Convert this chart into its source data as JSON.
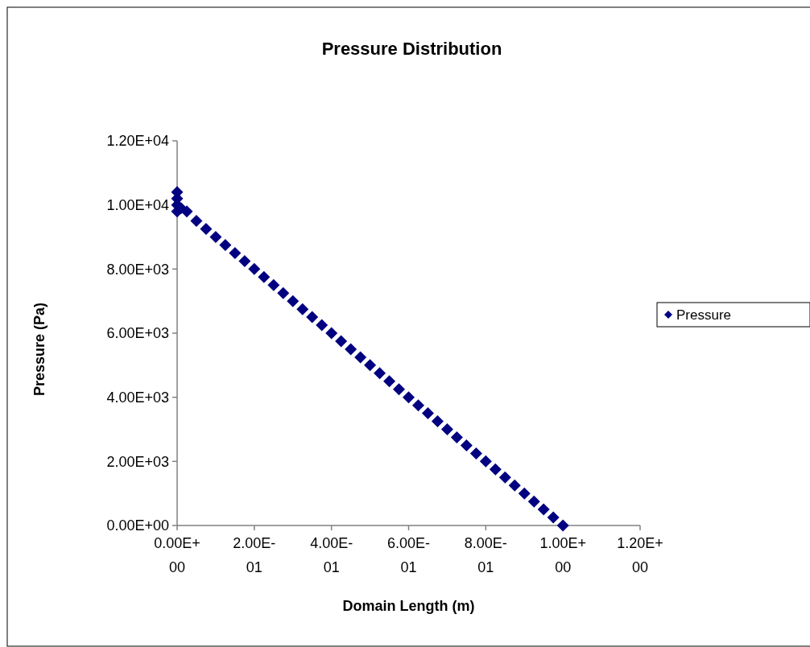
{
  "chart_data": {
    "type": "scatter",
    "title": "Pressure Distribution",
    "xlabel": "Domain Length (m)",
    "ylabel": "Pressure (Pa)",
    "xlim": [
      0,
      1.2
    ],
    "ylim": [
      0,
      12000
    ],
    "xticks": [
      {
        "value": 0,
        "label": "0.00E+00"
      },
      {
        "value": 0.2,
        "label": "2.00E-01"
      },
      {
        "value": 0.4,
        "label": "4.00E-01"
      },
      {
        "value": 0.6,
        "label": "6.00E-01"
      },
      {
        "value": 0.8,
        "label": "8.00E-01"
      },
      {
        "value": 1,
        "label": "1.00E+00"
      },
      {
        "value": 1.2,
        "label": "1.20E+00"
      }
    ],
    "yticks": [
      {
        "value": 0,
        "label": "0.00E+00"
      },
      {
        "value": 2000,
        "label": "2.00E+03"
      },
      {
        "value": 4000,
        "label": "4.00E+03"
      },
      {
        "value": 6000,
        "label": "6.00E+03"
      },
      {
        "value": 8000,
        "label": "8.00E+03"
      },
      {
        "value": 10000,
        "label": "1.00E+04"
      },
      {
        "value": 12000,
        "label": "1.20E+04"
      }
    ],
    "grid": false,
    "legend": "right",
    "marker": "diamond",
    "series": [
      {
        "name": "Pressure",
        "color": "#000080",
        "x": [
          0,
          0,
          0,
          0,
          0.01,
          0.025,
          0.05,
          0.075,
          0.1,
          0.125,
          0.15,
          0.175,
          0.2,
          0.225,
          0.25,
          0.275,
          0.3,
          0.325,
          0.35,
          0.375,
          0.4,
          0.425,
          0.45,
          0.475,
          0.5,
          0.525,
          0.55,
          0.575,
          0.6,
          0.625,
          0.65,
          0.675,
          0.7,
          0.725,
          0.75,
          0.775,
          0.8,
          0.825,
          0.85,
          0.875,
          0.9,
          0.925,
          0.95,
          0.975,
          1
        ],
        "values": [
          10400,
          10200,
          10000,
          9800,
          9900,
          9800,
          9500,
          9250,
          9000,
          8750,
          8500,
          8250,
          8000,
          7750,
          7500,
          7250,
          7000,
          6750,
          6500,
          6250,
          6000,
          5750,
          5500,
          5250,
          5000,
          4750,
          4500,
          4250,
          4000,
          3750,
          3500,
          3250,
          3000,
          2750,
          2500,
          2250,
          2000,
          1750,
          1500,
          1250,
          1000,
          750,
          500,
          250,
          0
        ]
      }
    ]
  }
}
